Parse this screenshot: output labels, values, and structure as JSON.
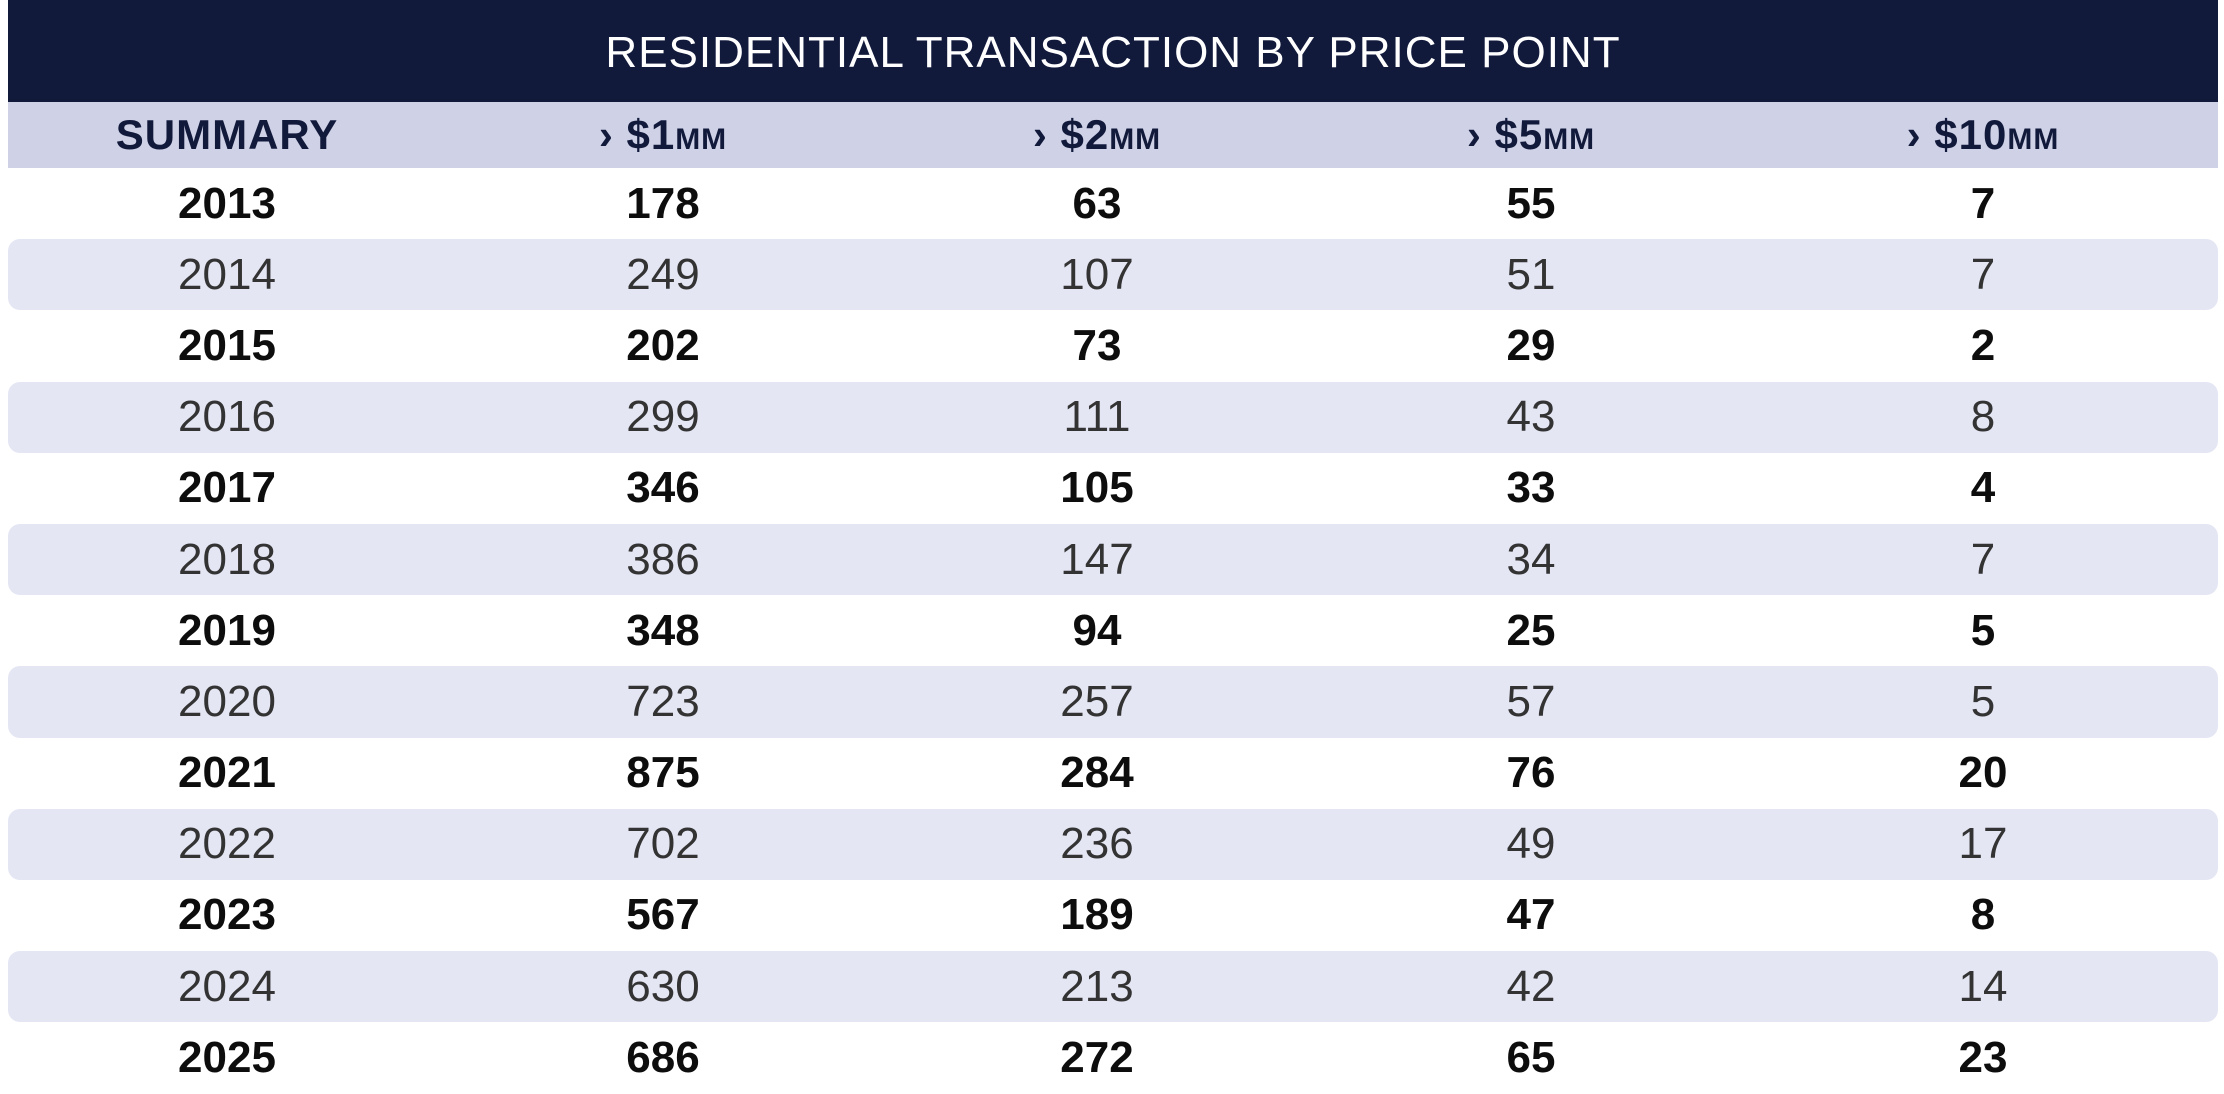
{
  "chart_data": {
    "type": "table",
    "title": "RESIDENTIAL TRANSACTION BY PRICE POINT",
    "columns": [
      {
        "main": "SUMMARY",
        "unit": ""
      },
      {
        "main": "› $1",
        "unit": "MM"
      },
      {
        "main": "› $2",
        "unit": "MM"
      },
      {
        "main": "› $5",
        "unit": "MM"
      },
      {
        "main": "› $10",
        "unit": "MM"
      }
    ],
    "rows": [
      [
        "2013",
        "178",
        "63",
        "55",
        "7"
      ],
      [
        "2014",
        "249",
        "107",
        "51",
        "7"
      ],
      [
        "2015",
        "202",
        "73",
        "29",
        "2"
      ],
      [
        "2016",
        "299",
        "111",
        "43",
        "8"
      ],
      [
        "2017",
        "346",
        "105",
        "33",
        "4"
      ],
      [
        "2018",
        "386",
        "147",
        "34",
        "7"
      ],
      [
        "2019",
        "348",
        "94",
        "25",
        "5"
      ],
      [
        "2020",
        "723",
        "257",
        "57",
        "5"
      ],
      [
        "2021",
        "875",
        "284",
        "76",
        "20"
      ],
      [
        "2022",
        "702",
        "236",
        "49",
        "17"
      ],
      [
        "2023",
        "567",
        "189",
        "47",
        "8"
      ],
      [
        "2024",
        "630",
        "213",
        "42",
        "14"
      ],
      [
        "2025",
        "686",
        "272",
        "65",
        "23"
      ]
    ]
  },
  "colors": {
    "title_bg": "#121a3c",
    "header_bg": "#cfd1e6",
    "stripe_bg": "#e4e6f4"
  }
}
